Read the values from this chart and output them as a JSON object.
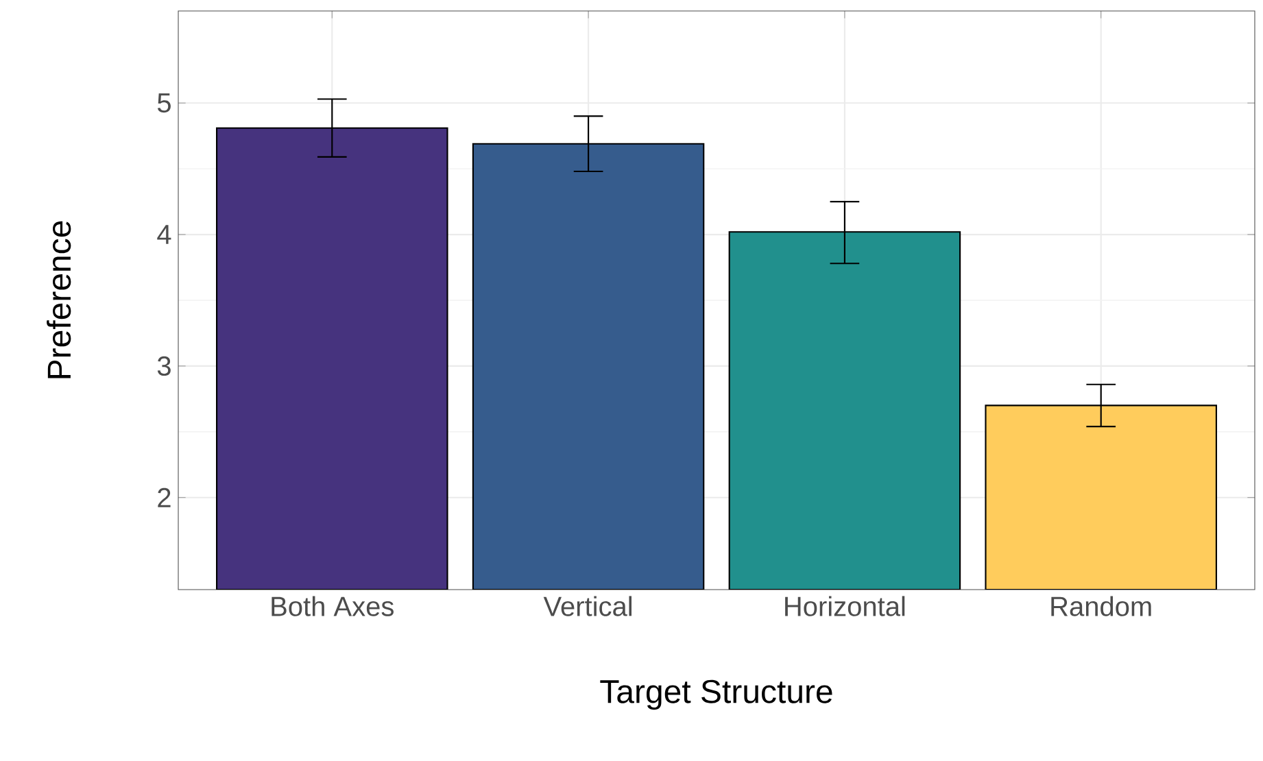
{
  "chart_data": {
    "type": "bar",
    "xlabel": "Target Structure",
    "ylabel": "Preference",
    "categories": [
      "Both Axes",
      "Vertical",
      "Horizontal",
      "Random"
    ],
    "values": [
      4.81,
      4.69,
      4.02,
      2.7
    ],
    "colors": [
      "#46337e",
      "#365c8d",
      "#21908d",
      "#ffcc5c"
    ],
    "errors": [
      [
        4.59,
        5.03
      ],
      [
        4.48,
        4.9
      ],
      [
        3.78,
        4.25
      ],
      [
        2.54,
        2.86
      ]
    ],
    "ylim": [
      1.3,
      5.7
    ],
    "yticks": [
      2,
      3,
      4,
      5
    ],
    "grid": true
  }
}
